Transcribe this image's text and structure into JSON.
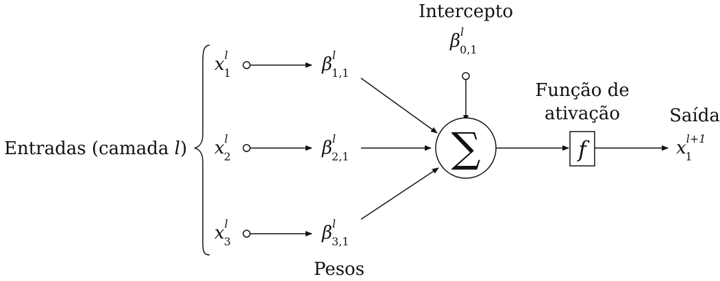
{
  "inputs_label": {
    "text": "Entradas (camada ",
    "var": "l",
    "close": ")"
  },
  "inputs": [
    {
      "sym": "x",
      "sub": "1",
      "sup": "l"
    },
    {
      "sym": "x",
      "sub": "2",
      "sup": "l"
    },
    {
      "sym": "x",
      "sub": "3",
      "sup": "l"
    }
  ],
  "weights": [
    {
      "sym": "β",
      "sub": "1,1",
      "sup": "l"
    },
    {
      "sym": "β",
      "sub": "2,1",
      "sup": "l"
    },
    {
      "sym": "β",
      "sub": "3,1",
      "sup": "l"
    }
  ],
  "weights_label": "Pesos",
  "intercept": {
    "title": "Intercepto",
    "sym": "β",
    "sub": "0,1",
    "sup": "l"
  },
  "summation_symbol": "∑",
  "activation": {
    "title_line1": "Função de",
    "title_line2": "ativação",
    "symbol": "f"
  },
  "output": {
    "title": "Saída",
    "sym": "x",
    "sub": "1",
    "sup": "l+1"
  }
}
